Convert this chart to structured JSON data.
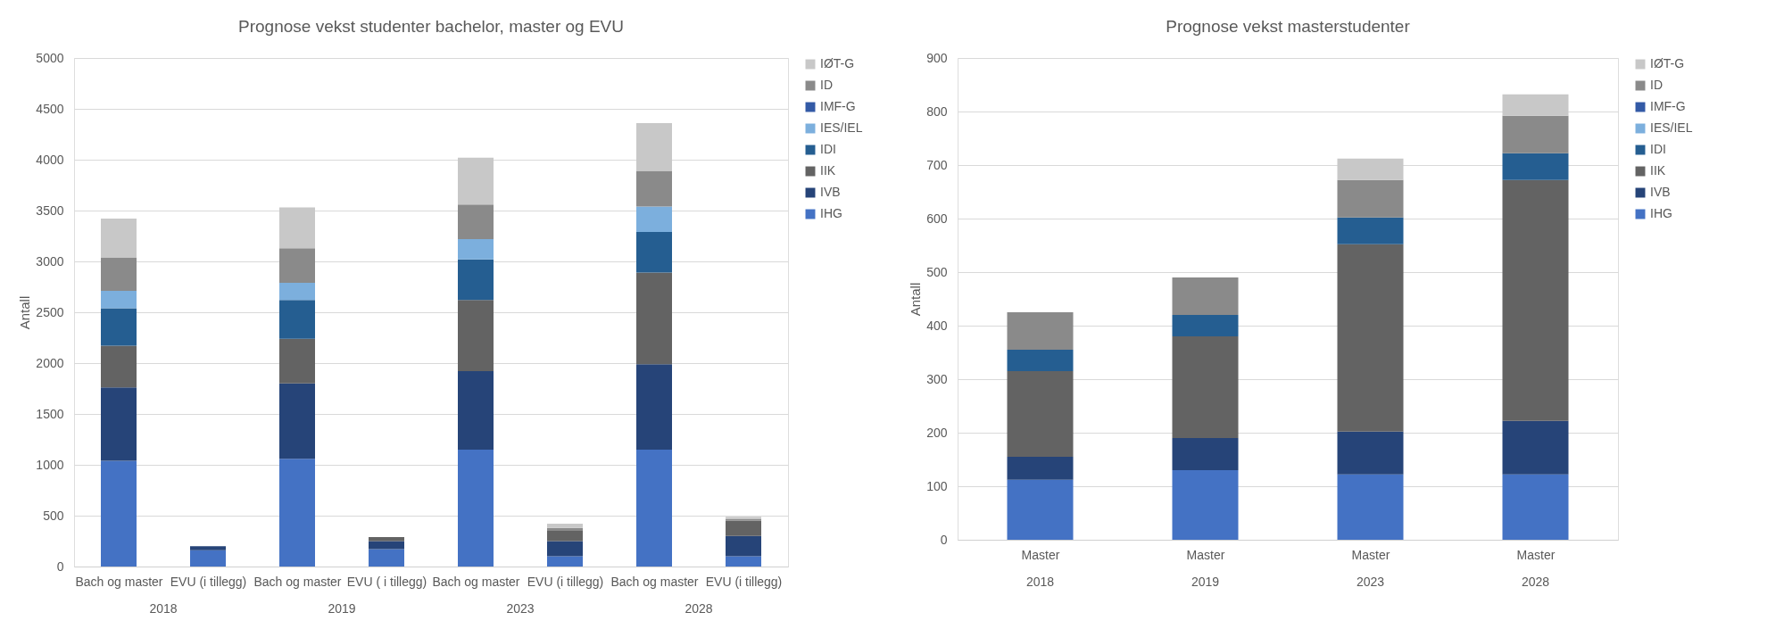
{
  "chart_data": [
    {
      "type": "bar",
      "stacked": true,
      "title": "Prognose vekst studenter bachelor, master og EVU",
      "ylabel": "Antall",
      "categories": [
        "Bach og master",
        "EVU (i tillegg)",
        "Bach og master",
        "EVU ( i tillegg)",
        "Bach og master",
        "EVU (i tillegg)",
        "Bach og master",
        "EVU (i tillegg)"
      ],
      "annotations": [
        "2018",
        "2019",
        "2023",
        "2028"
      ],
      "series": [
        {
          "name": "IHG",
          "color": "#4472c4",
          "values": [
            1040,
            160,
            1060,
            170,
            1150,
            100,
            1150,
            100
          ]
        },
        {
          "name": "IVB",
          "color": "#264478",
          "values": [
            720,
            40,
            740,
            80,
            770,
            150,
            840,
            200
          ]
        },
        {
          "name": "IIK",
          "color": "#636363",
          "values": [
            410,
            null,
            440,
            40,
            700,
            100,
            900,
            150
          ]
        },
        {
          "name": "IDI",
          "color": "#255e91",
          "values": [
            370,
            null,
            380,
            null,
            400,
            null,
            400,
            null
          ]
        },
        {
          "name": "IES/IEL",
          "color": "#7cafdd",
          "values": [
            170,
            null,
            170,
            null,
            200,
            null,
            250,
            null
          ]
        },
        {
          "name": "IMF-G",
          "color": "#335aa6",
          "values": [
            null,
            null,
            null,
            null,
            null,
            null,
            null,
            null
          ]
        },
        {
          "name": "ID",
          "color": "#8a8a8a",
          "values": [
            330,
            null,
            340,
            null,
            340,
            30,
            350,
            20
          ]
        },
        {
          "name": "IØT-G",
          "color": "#c8c8c8",
          "values": [
            380,
            null,
            400,
            null,
            460,
            40,
            470,
            20
          ]
        }
      ],
      "ylim": [
        0,
        5000
      ],
      "yticks": [
        0,
        500,
        1000,
        1500,
        2000,
        2500,
        3000,
        3500,
        4000,
        4500,
        5000
      ],
      "grid": "y",
      "legend": "right"
    },
    {
      "type": "bar",
      "stacked": true,
      "title": "Prognose vekst masterstudenter",
      "ylabel": "Antall",
      "categories": [
        "Master",
        "Master",
        "Master",
        "Master"
      ],
      "annotations": [
        "2018",
        "2019",
        "2023",
        "2028"
      ],
      "series": [
        {
          "name": "IHG",
          "color": "#4472c4",
          "values": [
            112,
            130,
            122,
            122
          ]
        },
        {
          "name": "IVB",
          "color": "#264478",
          "values": [
            43,
            60,
            80,
            100
          ]
        },
        {
          "name": "IIK",
          "color": "#636363",
          "values": [
            160,
            190,
            350,
            450
          ]
        },
        {
          "name": "IDI",
          "color": "#255e91",
          "values": [
            40,
            40,
            50,
            50
          ]
        },
        {
          "name": "IES/IEL",
          "color": "#7cafdd",
          "values": [
            null,
            null,
            null,
            null
          ]
        },
        {
          "name": "IMF-G",
          "color": "#335aa6",
          "values": [
            null,
            null,
            null,
            null
          ]
        },
        {
          "name": "ID",
          "color": "#8a8a8a",
          "values": [
            70,
            70,
            70,
            70
          ]
        },
        {
          "name": "IØT-G",
          "color": "#c8c8c8",
          "values": [
            null,
            null,
            40,
            40
          ]
        }
      ],
      "ylim": [
        0,
        900
      ],
      "yticks": [
        0,
        100,
        200,
        300,
        400,
        500,
        600,
        700,
        800,
        900
      ],
      "grid": "y",
      "legend": "right"
    }
  ]
}
